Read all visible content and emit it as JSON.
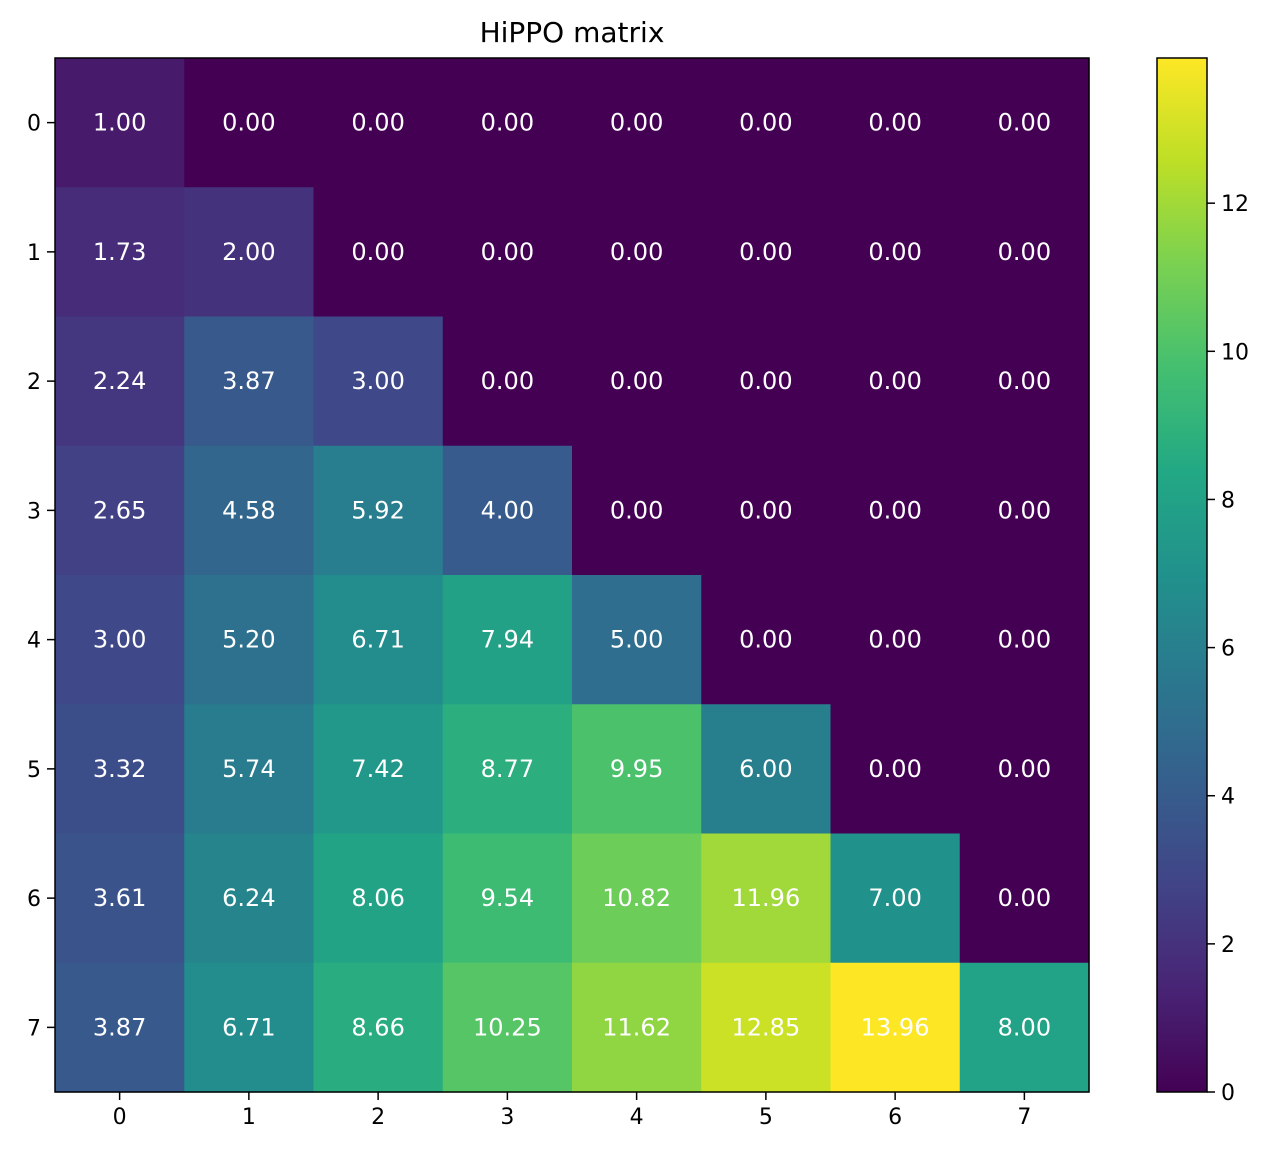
{
  "chart_data": {
    "type": "heatmap",
    "title": "HiPPO matrix",
    "xlabel": "",
    "ylabel": "",
    "x_categories": [
      "0",
      "1",
      "2",
      "3",
      "4",
      "5",
      "6",
      "7"
    ],
    "y_categories": [
      "0",
      "1",
      "2",
      "3",
      "4",
      "5",
      "6",
      "7"
    ],
    "values": [
      [
        1.0,
        0.0,
        0.0,
        0.0,
        0.0,
        0.0,
        0.0,
        0.0
      ],
      [
        1.73,
        2.0,
        0.0,
        0.0,
        0.0,
        0.0,
        0.0,
        0.0
      ],
      [
        2.24,
        3.87,
        3.0,
        0.0,
        0.0,
        0.0,
        0.0,
        0.0
      ],
      [
        2.65,
        4.58,
        5.92,
        4.0,
        0.0,
        0.0,
        0.0,
        0.0
      ],
      [
        3.0,
        5.2,
        6.71,
        7.94,
        5.0,
        0.0,
        0.0,
        0.0
      ],
      [
        3.32,
        5.74,
        7.42,
        8.77,
        9.95,
        6.0,
        0.0,
        0.0
      ],
      [
        3.61,
        6.24,
        8.06,
        9.54,
        10.82,
        11.96,
        7.0,
        0.0
      ],
      [
        3.87,
        6.71,
        8.66,
        10.25,
        11.62,
        12.85,
        13.96,
        8.0
      ]
    ],
    "value_format_decimals": 2,
    "colormap": "viridis",
    "color_range": [
      0,
      13.96
    ],
    "colorbar_ticks": [
      "0",
      "2",
      "4",
      "6",
      "8",
      "10",
      "12"
    ],
    "cell_text_color": "#ffffff"
  }
}
